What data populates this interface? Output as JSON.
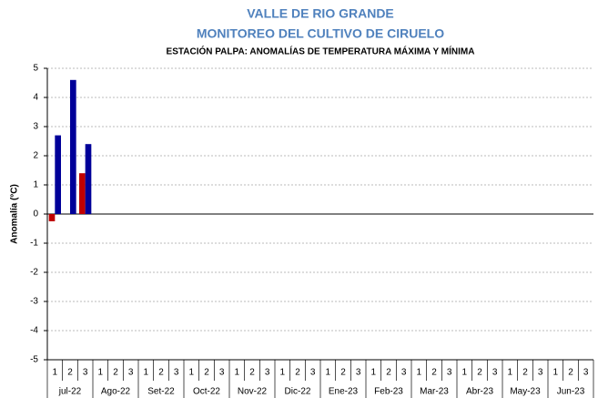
{
  "chart_data": {
    "type": "bar",
    "title": "VALLE DE RIO GRANDE",
    "subtitle": "MONITOREO DEL CULTIVO DE CIRUELO",
    "caption": "ESTACIÓN PALPA: ANOMALÍAS DE TEMPERATURA MÁXIMA Y MÍNIMA",
    "y_label": "Anomalía (°C)",
    "categories": [
      "1",
      "2",
      "3",
      "1",
      "2",
      "3",
      "1",
      "2",
      "3",
      "1",
      "2",
      "3",
      "1",
      "2",
      "3",
      "1",
      "2",
      "3",
      "1",
      "2",
      "3",
      "1",
      "2",
      "3",
      "1",
      "2",
      "3",
      "1",
      "2",
      "3",
      "1",
      "2",
      "3",
      "1",
      "2",
      "3"
    ],
    "groups": [
      "jul-22",
      "Ago-22",
      "Set-22",
      "Oct-22",
      "Nov-22",
      "Dic-22",
      "Ene-23",
      "Feb-23",
      "Mar-23",
      "Abr-23",
      "May-23",
      "Jun-23"
    ],
    "series": [
      {
        "color": "#c00000",
        "values": [
          -0.25,
          0,
          1.4,
          null,
          null,
          null,
          null,
          null,
          null,
          null,
          null,
          null,
          null,
          null,
          null,
          null,
          null,
          null,
          null,
          null,
          null,
          null,
          null,
          null,
          null,
          null,
          null,
          null,
          null,
          null,
          null,
          null,
          null,
          null,
          null,
          null
        ]
      },
      {
        "color": "#000099",
        "values": [
          2.7,
          4.6,
          2.4,
          null,
          null,
          null,
          null,
          null,
          null,
          null,
          null,
          null,
          null,
          null,
          null,
          null,
          null,
          null,
          null,
          null,
          null,
          null,
          null,
          null,
          null,
          null,
          null,
          null,
          null,
          null,
          null,
          null,
          null,
          null,
          null,
          null
        ]
      }
    ],
    "ylim": [
      -5,
      5
    ],
    "yticks": [
      -5,
      -4,
      -3,
      -2,
      -1,
      0,
      1,
      2,
      3,
      4,
      5
    ],
    "grid": true
  }
}
